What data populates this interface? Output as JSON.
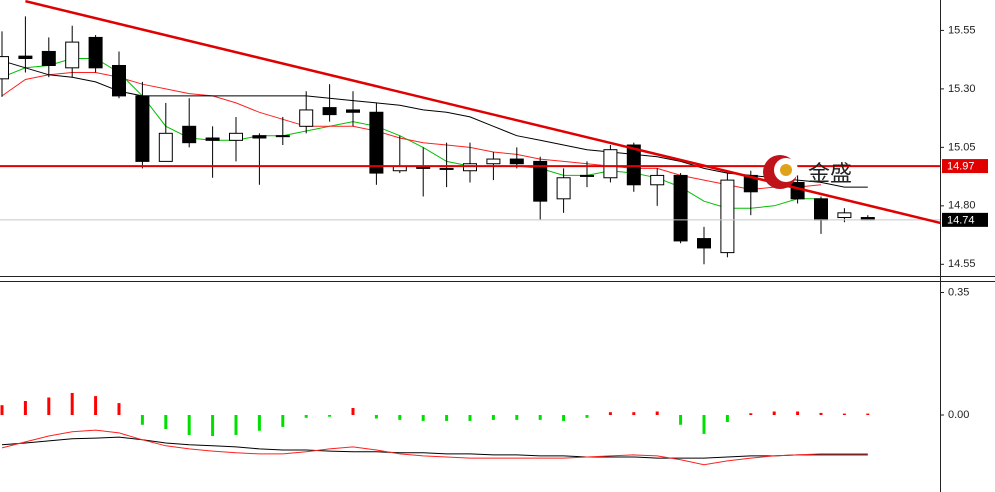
{
  "logo": "金盛",
  "chart_data": [
    {
      "type": "candlestick",
      "open": [
        15.343,
        15.44,
        15.46,
        15.39,
        15.52,
        15.4,
        15.27,
        14.99,
        15.14,
        15.09,
        15.08,
        15.1,
        15.1,
        15.14,
        15.22,
        15.21,
        15.2,
        14.95,
        14.97,
        14.96,
        14.95,
        14.98,
        15.0,
        14.99,
        14.83,
        14.93,
        14.92,
        15.06,
        14.89,
        14.93,
        14.66,
        14.6,
        14.93,
        14.91,
        14.9,
        14.83,
        14.75,
        14.75
      ],
      "high": [
        15.546,
        15.61,
        15.52,
        15.57,
        15.53,
        15.46,
        15.33,
        15.24,
        15.26,
        15.14,
        15.18,
        15.11,
        15.18,
        15.29,
        15.32,
        15.29,
        15.24,
        15.1,
        15.05,
        15.07,
        15.07,
        15.03,
        15.05,
        15.01,
        14.96,
        14.99,
        15.06,
        15.07,
        14.96,
        14.94,
        14.71,
        14.94,
        14.95,
        14.96,
        14.93,
        14.84,
        14.79,
        14.76
      ],
      "low": [
        15.266,
        15.37,
        15.35,
        15.35,
        15.37,
        15.26,
        14.96,
        14.99,
        15.05,
        14.92,
        14.99,
        14.89,
        15.06,
        15.11,
        15.16,
        15.14,
        14.89,
        14.94,
        14.84,
        14.88,
        14.9,
        14.91,
        14.96,
        14.74,
        14.77,
        14.88,
        14.9,
        14.86,
        14.8,
        14.64,
        14.55,
        14.58,
        14.76,
        14.88,
        14.81,
        14.68,
        14.73,
        14.74
      ],
      "close": [
        15.438,
        15.43,
        15.4,
        15.5,
        15.39,
        15.27,
        14.99,
        15.11,
        15.07,
        15.08,
        15.11,
        15.09,
        15.1,
        15.21,
        15.19,
        15.2,
        14.94,
        14.97,
        14.96,
        14.96,
        14.98,
        15.0,
        14.98,
        14.82,
        14.92,
        14.93,
        15.04,
        14.89,
        14.93,
        14.65,
        14.62,
        14.91,
        14.86,
        14.93,
        14.83,
        14.74,
        14.77,
        14.74
      ],
      "series": [
        {
          "color": "#00c000",
          "values": [
            15.35,
            15.39,
            15.4,
            15.43,
            15.43,
            15.37,
            15.27,
            15.14,
            15.09,
            15.08,
            15.08,
            15.1,
            15.1,
            15.12,
            15.14,
            15.16,
            15.14,
            15.1,
            15.05,
            14.99,
            14.97,
            14.97,
            14.97,
            14.96,
            14.93,
            14.93,
            14.95,
            14.94,
            14.92,
            14.88,
            14.82,
            14.79,
            14.79,
            14.8,
            14.83,
            14.83,
            null,
            null
          ]
        },
        {
          "color": "#ff2020",
          "values": [
            15.27,
            15.34,
            15.36,
            15.37,
            15.37,
            15.35,
            15.32,
            15.3,
            15.28,
            15.27,
            15.24,
            15.2,
            15.17,
            15.14,
            15.14,
            15.14,
            15.12,
            15.09,
            15.07,
            15.06,
            15.05,
            15.03,
            15.02,
            15.0,
            14.99,
            14.98,
            14.97,
            14.96,
            14.96,
            14.93,
            14.91,
            14.89,
            14.87,
            14.88,
            14.88,
            14.89,
            null,
            null
          ]
        },
        {
          "color": "#000000",
          "values": [
            15.42,
            15.39,
            15.36,
            15.35,
            15.33,
            15.29,
            15.27,
            15.27,
            15.27,
            15.27,
            15.27,
            15.27,
            15.27,
            15.27,
            15.26,
            15.25,
            15.24,
            15.23,
            15.21,
            15.2,
            15.18,
            15.14,
            15.1,
            15.08,
            15.06,
            15.04,
            15.03,
            15.02,
            15.01,
            14.99,
            14.96,
            14.94,
            14.93,
            14.92,
            14.91,
            14.9,
            14.88,
            14.88
          ]
        }
      ],
      "up_color": "#ffffff",
      "down_color": "#000000",
      "trend_line": {
        "start_index": 1,
        "start": 15.675,
        "end_index": 40.1,
        "end": 14.727,
        "color": "#e00000"
      },
      "level_line": {
        "value": 14.97,
        "color": "#e00000"
      },
      "current_price": {
        "value": 14.74,
        "color": "#000000"
      },
      "ylim": [
        14.5,
        15.68
      ],
      "yticks": [
        14.55,
        {
          "value": 14.8,
          "label": "14.80"
        },
        15.05,
        {
          "value": 15.3,
          "label": "15.30"
        },
        15.55
      ]
    },
    {
      "type": "macd",
      "values": [
        0.028,
        0.04,
        0.05,
        0.063,
        0.054,
        0.034,
        -0.028,
        -0.04,
        -0.057,
        -0.06,
        -0.057,
        -0.045,
        -0.034,
        -0.008,
        -0.005,
        0.02,
        -0.01,
        -0.014,
        -0.017,
        -0.017,
        -0.017,
        -0.014,
        -0.014,
        -0.014,
        -0.017,
        -0.008,
        0.008,
        0.008,
        0.01,
        -0.028,
        -0.054,
        -0.02,
        0.005,
        0.01,
        0.01,
        0.006,
        0.004,
        0.004
      ],
      "up_color": "#ff0000",
      "down_color": "#00e000",
      "series": [
        {
          "color": "#000000",
          "values": [
            -0.085,
            -0.08,
            -0.074,
            -0.068,
            -0.066,
            -0.063,
            -0.071,
            -0.08,
            -0.085,
            -0.088,
            -0.091,
            -0.097,
            -0.1,
            -0.1,
            -0.103,
            -0.105,
            -0.105,
            -0.108,
            -0.108,
            -0.111,
            -0.111,
            -0.114,
            -0.114,
            -0.117,
            -0.117,
            -0.12,
            -0.12,
            -0.12,
            -0.123,
            -0.123,
            -0.123,
            -0.12,
            -0.117,
            -0.117,
            -0.114,
            -0.114,
            -0.114,
            -0.114
          ]
        },
        {
          "color": "#ff2020",
          "values": [
            -0.094,
            -0.077,
            -0.06,
            -0.048,
            -0.043,
            -0.051,
            -0.071,
            -0.088,
            -0.097,
            -0.103,
            -0.108,
            -0.111,
            -0.111,
            -0.105,
            -0.097,
            -0.091,
            -0.1,
            -0.111,
            -0.117,
            -0.12,
            -0.123,
            -0.123,
            -0.123,
            -0.123,
            -0.123,
            -0.12,
            -0.117,
            -0.114,
            -0.117,
            -0.128,
            -0.142,
            -0.131,
            -0.123,
            -0.117,
            -0.114,
            -0.111,
            -0.111,
            -0.111
          ]
        }
      ],
      "ylim": [
        -0.22,
        0.38
      ],
      "yticks": [
        {
          "value": 0,
          "label": "0.00"
        },
        0.35
      ]
    }
  ]
}
